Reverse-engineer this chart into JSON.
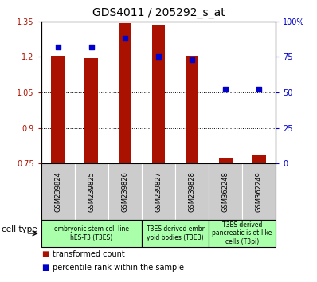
{
  "title": "GDS4011 / 205292_s_at",
  "samples": [
    "GSM239824",
    "GSM239825",
    "GSM239826",
    "GSM239827",
    "GSM239828",
    "GSM362248",
    "GSM362249"
  ],
  "transformed_count": [
    1.205,
    1.193,
    1.342,
    1.333,
    1.205,
    0.775,
    0.785
  ],
  "percentile_rank": [
    82,
    82,
    88,
    75,
    73,
    52,
    52
  ],
  "ylim_left": [
    0.75,
    1.35
  ],
  "ylim_right": [
    0,
    100
  ],
  "yticks_left": [
    0.75,
    0.9,
    1.05,
    1.2,
    1.35
  ],
  "ytick_labels_left": [
    "0.75",
    "0.9",
    "1.05",
    "1.2",
    "1.35"
  ],
  "yticks_right": [
    0,
    25,
    50,
    75,
    100
  ],
  "ytick_labels_right": [
    "0",
    "25",
    "50",
    "75",
    "100%"
  ],
  "bar_color": "#aa1100",
  "dot_color": "#0000cc",
  "bar_width": 0.4,
  "dot_size": 25,
  "group_ranges": [
    [
      0,
      2
    ],
    [
      3,
      4
    ],
    [
      5,
      6
    ]
  ],
  "group_labels": [
    "embryonic stem cell line\nhES-T3 (T3ES)",
    "T3ES derived embr\nyoid bodies (T3EB)",
    "T3ES derived\npancreatic islet-like\ncells (T3pi)"
  ],
  "group_color": "#aaffaa",
  "sample_box_color": "#cccccc",
  "cell_type_label": "cell type",
  "legend_red": "transformed count",
  "legend_blue": "percentile rank within the sample"
}
